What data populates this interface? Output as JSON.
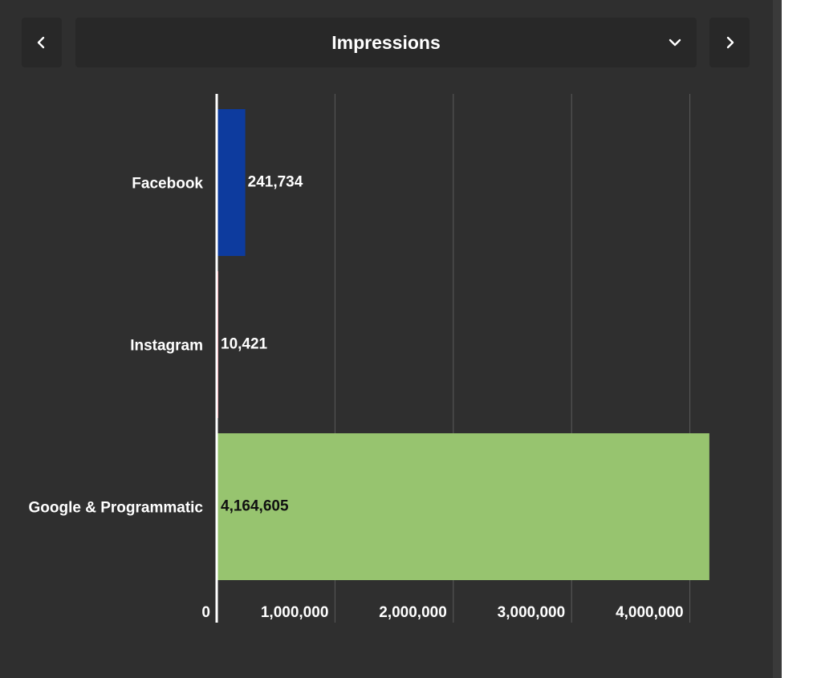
{
  "header": {
    "prev_icon": "chevron-left-icon",
    "next_icon": "chevron-right-icon",
    "metric_selected": "Impressions",
    "dropdown_icon": "chevron-down-icon"
  },
  "chart_data": {
    "type": "bar",
    "orientation": "horizontal",
    "categories": [
      "Facebook",
      "Instagram",
      "Google & Programmatic"
    ],
    "values": [
      241734,
      10421,
      4164605
    ],
    "data_labels": [
      "241,734",
      "10,421",
      "4,164,605"
    ],
    "colors": [
      "#0d3b9e",
      "#e05b6e",
      "#97c46f"
    ],
    "xlim": [
      0,
      4200000
    ],
    "x_ticks": [
      0,
      1000000,
      2000000,
      3000000,
      4000000
    ],
    "x_tick_labels": [
      "0",
      "1,000,000",
      "2,000,000",
      "3,000,000",
      "4,000,000"
    ],
    "grid": true,
    "legend": "none"
  }
}
